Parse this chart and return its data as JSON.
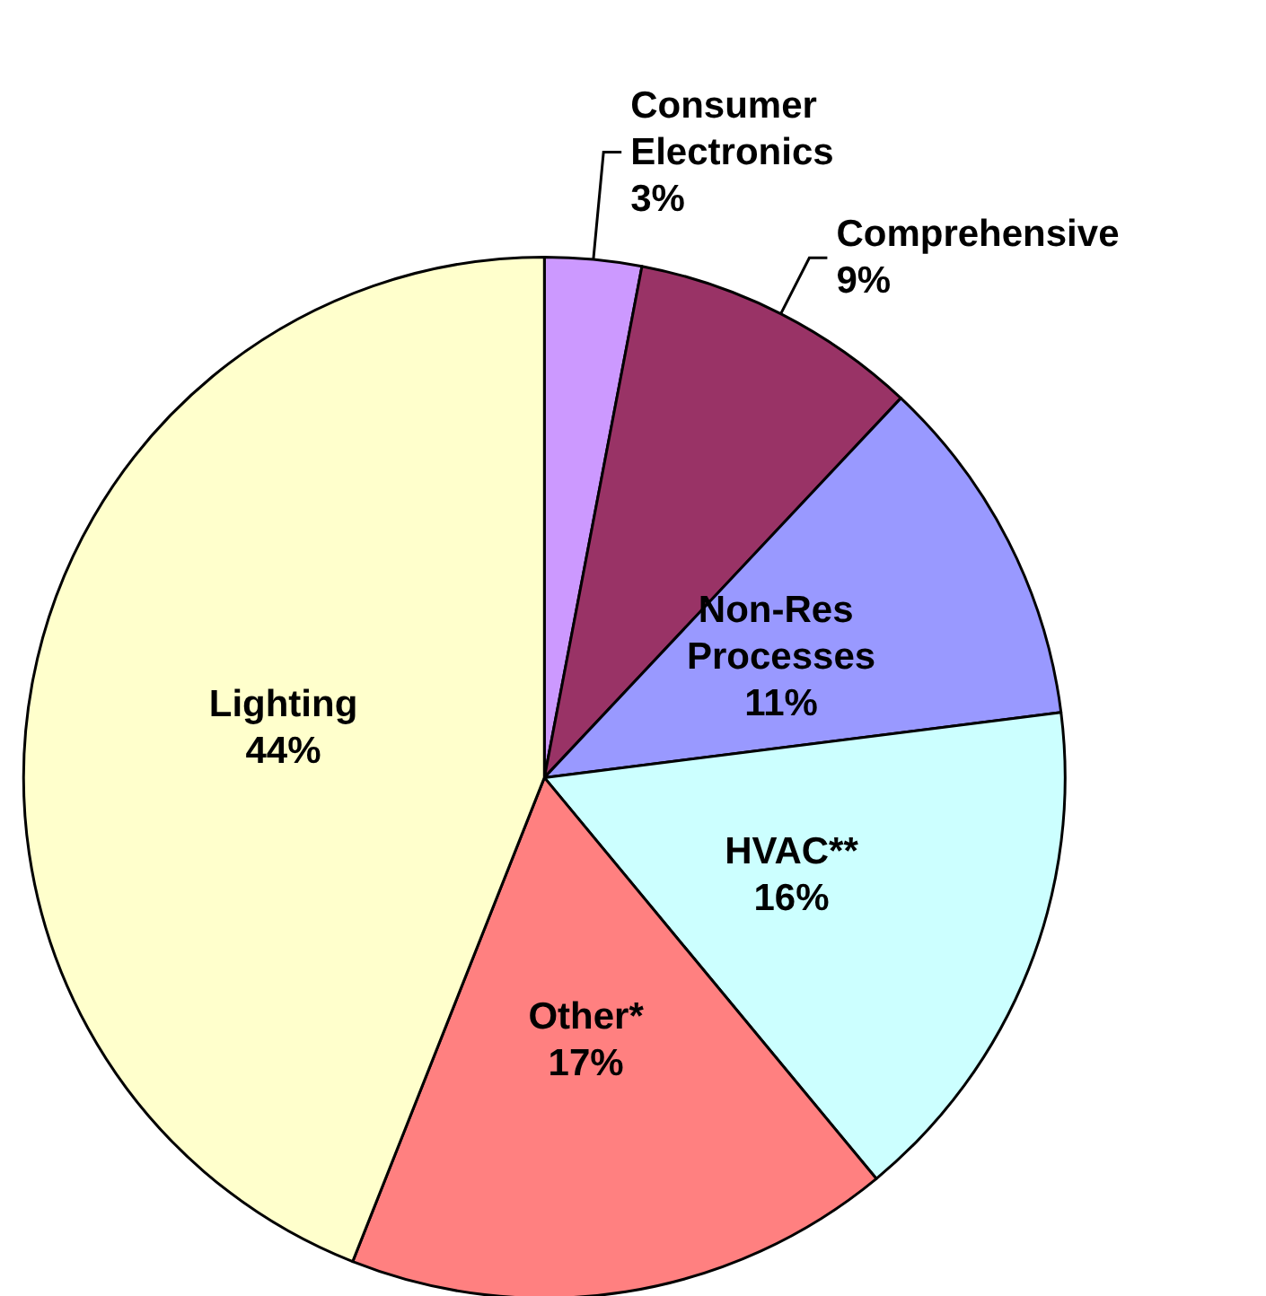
{
  "chart_data": {
    "type": "pie",
    "categories": [
      "Consumer Electronics",
      "Comprehensive",
      "Non-Res Processes",
      "HVAC**",
      "Other*",
      "Lighting"
    ],
    "values": [
      3,
      9,
      11,
      16,
      17,
      44
    ],
    "value_labels": [
      "3%",
      "9%",
      "11%",
      "16%",
      "17%",
      "44%"
    ],
    "colors": [
      "#cc99ff",
      "#993366",
      "#9999ff",
      "#ccffff",
      "#ff8080",
      "#ffffcc"
    ],
    "legend": false
  }
}
